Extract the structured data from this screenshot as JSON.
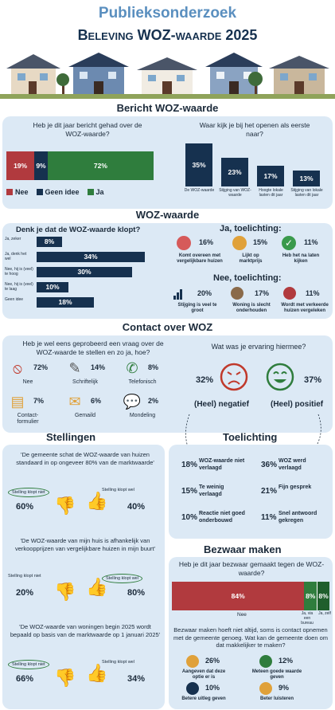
{
  "header": {
    "subtitle": "Publieksonderzoek",
    "title": "Beleving WOZ-waarde 2025"
  },
  "bericht": {
    "section_title": "Bericht WOZ-waarde",
    "q1": "Heb je dit jaar bericht gehad over de WOZ-waarde?",
    "q2": "Waar kijk je bij het openen als eerste naar?",
    "legend": [
      "Nee",
      "Geen idee",
      "Ja"
    ]
  },
  "woz": {
    "section_title": "WOZ-waarde",
    "q": "Denk je dat de WOZ-waarde klopt?",
    "ja_title": "Ja, toelichting:",
    "nee_title": "Nee, toelichting:",
    "ja_items": [
      {
        "pct": "16%",
        "label": "Komt overeen met vergelijkbare huizen",
        "icon": "houses-icon"
      },
      {
        "pct": "15%",
        "label": "Lijkt op marktprijs",
        "icon": "price-tag-icon"
      },
      {
        "pct": "11%",
        "label": "Heb het na laten kijken",
        "icon": "checkmark-icon"
      }
    ],
    "nee_items": [
      {
        "pct": "20%",
        "label": "Stijging is veel te groot",
        "icon": "rising-bars-icon"
      },
      {
        "pct": "17%",
        "label": "Woning is slecht onderhouden",
        "icon": "broken-house-icon"
      },
      {
        "pct": "11%",
        "label": "Wordt met verkeerde huizen vergeleken",
        "icon": "wrong-house-icon"
      }
    ]
  },
  "contact": {
    "section_title": "Contact over WOZ",
    "q": "Heb je wel eens geprobeerd een vraag over de WOZ-waarde te stellen en zo ja, hoe?",
    "items": [
      {
        "pct": "72%",
        "label": "Nee",
        "icon": "no-sign-icon"
      },
      {
        "pct": "14%",
        "label": "Schriftelijk",
        "icon": "pen-icon"
      },
      {
        "pct": "8%",
        "label": "Telefonisch",
        "icon": "phone-icon"
      },
      {
        "pct": "7%",
        "label": "Contact-formulier",
        "icon": "form-icon"
      },
      {
        "pct": "6%",
        "label": "Gemaild",
        "icon": "email-icon"
      },
      {
        "pct": "2%",
        "label": "Mondeling",
        "icon": "speech-icon"
      }
    ],
    "exp_q": "Wat was je ervaring hiermee?",
    "neg_pct": "32%",
    "neg_label": "(Heel) negatief",
    "pos_pct": "37%",
    "pos_label": "(Heel) positief"
  },
  "stellingen": {
    "section_title": "Stellingen",
    "not_label": "Stelling klopt niet",
    "yes_label": "Stelling klopt wel",
    "items": [
      {
        "text": "'De gemeente schat de WOZ-waarde van huizen standaard in op ongeveer 80% van de marktwaarde'",
        "niet": "60%",
        "wel": "40%"
      },
      {
        "text": "'De WOZ-waarde van mijn huis is afhankelijk van verkoopprijzen van vergelijkbare huizen in mijn buurt'",
        "niet": "20%",
        "wel": "80%"
      },
      {
        "text": "'De WOZ-waarde van woningen begin 2025 wordt bepaald op basis van de marktwaarde op 1 januari 2025'",
        "niet": "66%",
        "wel": "34%"
      }
    ]
  },
  "toelichting": {
    "section_title": "Toelichting",
    "items": [
      {
        "pct": "18%",
        "label": "WOZ-waarde niet verlaagd"
      },
      {
        "pct": "36%",
        "label": "WOZ werd verlaagd"
      },
      {
        "pct": "15%",
        "label": "Te weinig verlaagd"
      },
      {
        "pct": "21%",
        "label": "Fijn gesprek"
      },
      {
        "pct": "10%",
        "label": "Reactie niet goed onderbouwd"
      },
      {
        "pct": "11%",
        "label": "Snel antwoord gekregen"
      }
    ]
  },
  "bezwaar": {
    "section_title": "Bezwaar maken",
    "q": "Heb je dit jaar bezwaar gemaakt tegen de WOZ-waarde?",
    "labels": [
      "Nee",
      "Ja, via een bureau",
      "Ja, zelf"
    ],
    "q2": "Bezwaar maken hoeft niet altijd, soms is contact opnemen met de gemeente genoeg. Wat kan de gemeente doen om dat makkelijker te maken?",
    "items": [
      {
        "pct": "26%",
        "label": "Aangeven dat deze optie er is",
        "icon": "lightbulb-icon"
      },
      {
        "pct": "12%",
        "label": "Meteen goede waarde geven",
        "icon": "money-icon"
      },
      {
        "pct": "10%",
        "label": "Betere uitleg geven",
        "icon": "explain-icon"
      },
      {
        "pct": "9%",
        "label": "Beter luisteren",
        "icon": "ear-icon"
      }
    ]
  },
  "chart_data": [
    {
      "type": "bar",
      "title": "Heb je dit jaar bericht gehad over de WOZ-waarde?",
      "stacked": true,
      "orientation": "horizontal",
      "categories": [
        "Nee",
        "Geen idee",
        "Ja"
      ],
      "values": [
        19,
        9,
        72
      ],
      "colors": [
        "#b13a3e",
        "#16314f",
        "#2f7d3d"
      ]
    },
    {
      "type": "bar",
      "title": "Waar kijk je bij het openen als eerste naar?",
      "categories": [
        "De WOZ-waarde",
        "Stijging van WOZ-waarde",
        "Hoogte lokale lasten dit jaar",
        "Stijging van lokale lasten dit jaar"
      ],
      "values": [
        35,
        23,
        17,
        13
      ],
      "color": "#16314f"
    },
    {
      "type": "bar",
      "title": "Denk je dat de WOZ-waarde klopt?",
      "orientation": "horizontal",
      "categories": [
        "Ja, zeker",
        "Ja, denk het wel",
        "Nee, hij is (veel) te hoog",
        "Nee, hij is (veel) te laag",
        "Geen idee"
      ],
      "values": [
        8,
        34,
        30,
        10,
        18
      ],
      "color": "#16314f"
    },
    {
      "type": "bar",
      "title": "Heb je dit jaar bezwaar gemaakt tegen de WOZ-waarde?",
      "stacked": true,
      "orientation": "horizontal",
      "categories": [
        "Nee",
        "Ja, via een bureau",
        "Ja, zelf"
      ],
      "values": [
        84,
        8,
        8
      ],
      "colors": [
        "#b13a3e",
        "#2f7d3d",
        "#1f5e2c"
      ]
    }
  ]
}
